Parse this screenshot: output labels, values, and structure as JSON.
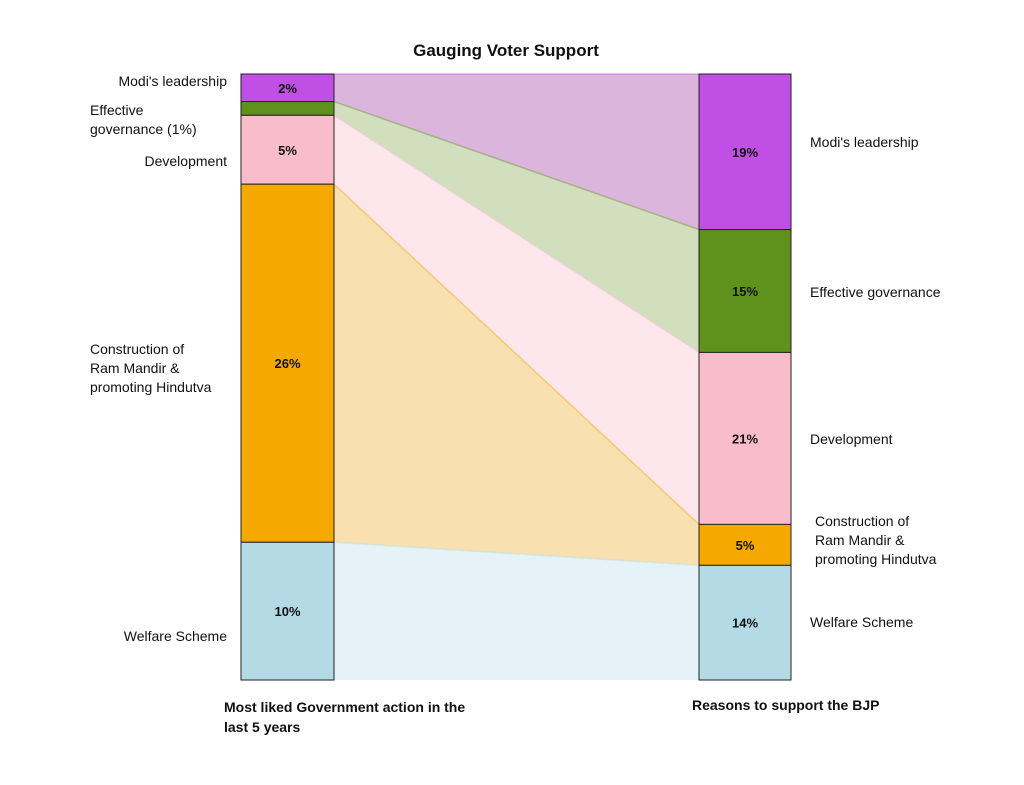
{
  "chart_data": {
    "type": "bar",
    "title": "Gauging Voter Support",
    "categories": [
      "Modi's leadership",
      "Effective governance",
      "Development",
      "Construction of Ram Mandir & promoting Hindutva",
      "Welfare Scheme"
    ],
    "series": [
      {
        "name": "Most liked Government action in the last 5 years",
        "values": [
          2,
          1,
          5,
          26,
          10
        ],
        "labels": [
          "Modi's leadership",
          "Effective governance (1%)",
          "Development",
          "Construction of Ram Mandir & promoting Hindutva",
          "Welfare Scheme"
        ],
        "value_labels": [
          "2%",
          "",
          "5%",
          "26%",
          "10%"
        ]
      },
      {
        "name": "Reasons to support the BJP",
        "values": [
          19,
          15,
          21,
          5,
          14
        ],
        "labels": [
          "Modi's leadership",
          "Effective governance",
          "Development",
          "Construction of Ram Mandir & promoting Hindutva",
          "Welfare Scheme"
        ],
        "value_labels": [
          "19%",
          "15%",
          "21%",
          "5%",
          "14%"
        ]
      }
    ],
    "colors": [
      "#bf4fe5",
      "#5f921d",
      "#f8bccb",
      "#f4a800",
      "#b4dbe5"
    ],
    "flow_colors": [
      "#dcb5dd",
      "#d2dfbf",
      "#fde6ec",
      "#f8e0b0",
      "#e5f2f7"
    ]
  }
}
